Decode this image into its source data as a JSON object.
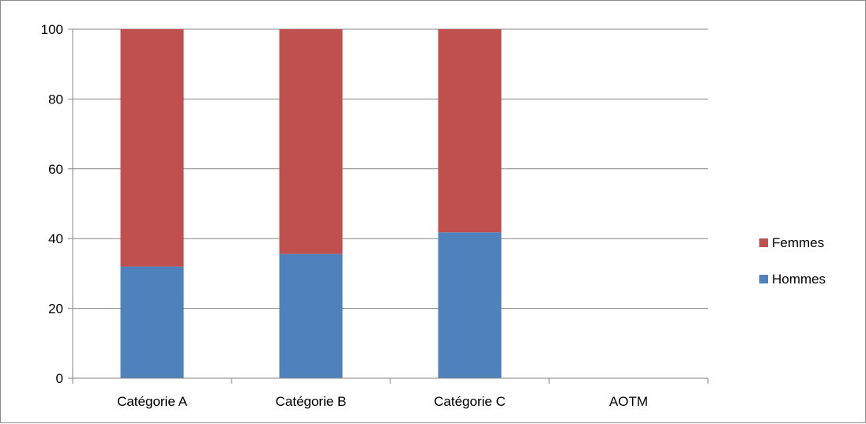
{
  "chart_data": {
    "type": "bar",
    "stacked": true,
    "categories": [
      "Catégorie A",
      "Catégorie B",
      "Catégorie C",
      "AOTM"
    ],
    "series": [
      {
        "name": "Hommes",
        "values": [
          32,
          35.6,
          41.8,
          0
        ],
        "color": "#4f81bd"
      },
      {
        "name": "Femmes",
        "values": [
          68,
          64.4,
          58.2,
          0
        ],
        "color": "#c0504d"
      }
    ],
    "ylim": [
      0,
      100
    ],
    "yticks": [
      "0",
      "20",
      "40",
      "60",
      "80",
      "100"
    ],
    "grid": true,
    "legend_position": "right",
    "legend_order": [
      "Femmes",
      "Hommes"
    ]
  }
}
